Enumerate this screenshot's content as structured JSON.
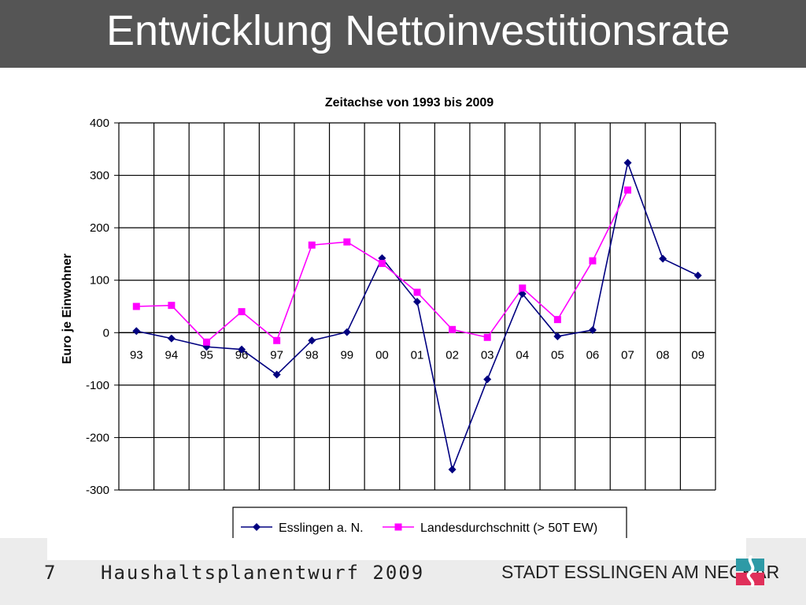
{
  "slide": {
    "title": "Entwicklung Nettoinvestitionsrate",
    "page_number": "7",
    "footer_label": "Haushaltsplanentwurf 2009",
    "organization": "STADT ESSLINGEN AM NECKAR"
  },
  "chart_data": {
    "type": "line",
    "title": "Zeitachse von 1993 bis 2009",
    "ylabel": "Euro je Einwohner",
    "xlabel": "",
    "ylim": [
      -300,
      400
    ],
    "yticks": [
      400,
      300,
      200,
      100,
      0,
      -100,
      -200,
      -300
    ],
    "categories": [
      "93",
      "94",
      "95",
      "96",
      "97",
      "98",
      "99",
      "00",
      "01",
      "02",
      "03",
      "04",
      "05",
      "06",
      "07",
      "08",
      "09"
    ],
    "grid": true,
    "legend_position": "bottom",
    "series": [
      {
        "name": "Esslingen a. N.",
        "color": "#000080",
        "marker": "diamond",
        "values": [
          3,
          -11,
          -27,
          -32,
          -80,
          -15,
          1,
          142,
          59,
          -261,
          -89,
          74,
          -7,
          5,
          324,
          141,
          109
        ]
      },
      {
        "name": "Landesdurchschnitt (> 50T EW)",
        "color": "#ff00ff",
        "marker": "square",
        "values": [
          50,
          52,
          -18,
          40,
          -15,
          167,
          173,
          132,
          77,
          6,
          -9,
          85,
          25,
          137,
          272,
          null,
          null
        ]
      }
    ]
  }
}
